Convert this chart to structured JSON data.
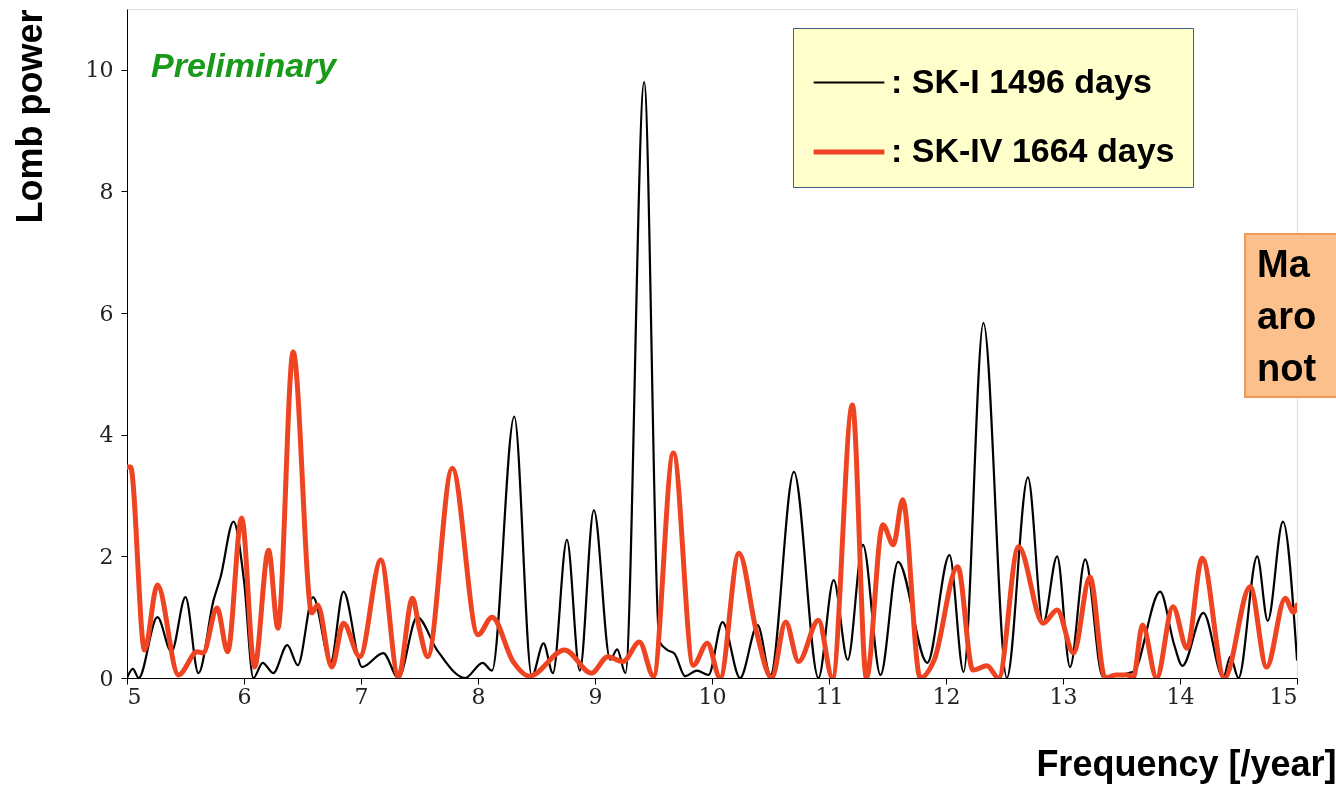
{
  "chart_data": {
    "type": "line",
    "xlabel": "Frequency [/year]",
    "ylabel": "Lomb power",
    "xlim": [
      5,
      15
    ],
    "xticks": [
      5,
      6,
      7,
      8,
      9,
      10,
      11,
      12,
      13,
      14,
      15
    ],
    "ylim": [
      0,
      11
    ],
    "yticks": [
      0,
      2,
      4,
      6,
      8,
      10
    ],
    "grid": false,
    "legend": "top right",
    "annotations": [
      "Preliminary",
      "Ma\naro\nnot"
    ],
    "series": [
      {
        "name": ": SK-I 1496 days",
        "color": "#000000",
        "x": [
          5.0,
          5.05,
          5.1,
          5.26,
          5.38,
          5.5,
          5.61,
          5.74,
          5.8,
          5.91,
          6.0,
          6.08,
          6.16,
          6.25,
          6.37,
          6.46,
          6.59,
          6.74,
          6.85,
          7.01,
          7.19,
          7.32,
          7.48,
          7.65,
          7.89,
          8.04,
          8.12,
          8.31,
          8.46,
          8.56,
          8.64,
          8.76,
          8.87,
          8.99,
          9.13,
          9.19,
          9.26,
          9.42,
          9.55,
          9.62,
          9.68,
          9.77,
          9.87,
          9.97,
          10.09,
          10.24,
          10.39,
          10.5,
          10.7,
          10.91,
          11.04,
          11.16,
          11.29,
          11.44,
          11.59,
          11.84,
          12.03,
          12.15,
          12.32,
          12.52,
          12.7,
          12.83,
          12.95,
          13.06,
          13.19,
          13.34,
          13.6,
          13.83,
          13.95,
          14.02,
          14.2,
          14.37,
          14.43,
          14.5,
          14.66,
          14.75,
          14.88,
          15.0
        ],
        "values": [
          0.0,
          0.15,
          0.0,
          1.0,
          0.43,
          1.33,
          0.08,
          1.28,
          1.66,
          2.57,
          1.6,
          0.0,
          0.25,
          0.08,
          0.54,
          0.21,
          1.33,
          0.25,
          1.42,
          0.18,
          0.41,
          0.0,
          1.0,
          0.46,
          0.0,
          0.25,
          0.12,
          4.3,
          0.03,
          0.57,
          0.08,
          2.27,
          0.12,
          2.76,
          0.3,
          0.47,
          0.08,
          9.8,
          0.6,
          0.46,
          0.4,
          0.03,
          0.12,
          0.05,
          0.92,
          0.0,
          0.87,
          0.05,
          3.39,
          0.0,
          1.61,
          0.3,
          2.19,
          0.05,
          1.91,
          0.25,
          2.02,
          0.1,
          5.84,
          0.0,
          3.3,
          0.9,
          2.0,
          0.18,
          1.95,
          0.02,
          0.1,
          1.42,
          0.55,
          0.2,
          1.07,
          0.0,
          0.35,
          0.0,
          2.0,
          0.94,
          2.57,
          0.3
        ]
      },
      {
        "name": ": SK-IV 1664 days",
        "color": "#ee4422",
        "x": [
          5.0,
          5.03,
          5.15,
          5.26,
          5.44,
          5.6,
          5.65,
          5.77,
          5.86,
          5.98,
          6.09,
          6.21,
          6.29,
          6.42,
          6.58,
          6.63,
          6.75,
          6.85,
          6.99,
          7.17,
          7.32,
          7.44,
          7.5,
          7.57,
          7.78,
          8.0,
          8.12,
          8.3,
          8.44,
          8.74,
          8.97,
          9.11,
          9.24,
          9.38,
          9.5,
          9.67,
          9.84,
          9.96,
          10.07,
          10.23,
          10.38,
          10.51,
          10.63,
          10.74,
          10.91,
          11.03,
          11.2,
          11.32,
          11.46,
          11.55,
          11.63,
          11.78,
          11.9,
          12.1,
          12.23,
          12.35,
          12.45,
          12.62,
          12.83,
          12.95,
          13.09,
          13.23,
          13.36,
          13.45,
          13.55,
          13.6,
          13.68,
          13.8,
          13.94,
          14.06,
          14.19,
          14.38,
          14.6,
          14.74,
          14.9,
          14.97,
          15.0
        ],
        "values": [
          3.47,
          3.47,
          0.46,
          1.53,
          0.05,
          0.43,
          0.41,
          1.15,
          0.43,
          2.63,
          0.18,
          2.1,
          0.82,
          5.36,
          1.07,
          1.2,
          0.18,
          0.9,
          0.35,
          1.94,
          0.02,
          1.31,
          0.8,
          0.35,
          3.45,
          0.71,
          1.0,
          0.27,
          0.03,
          0.46,
          0.08,
          0.35,
          0.27,
          0.59,
          0.03,
          3.7,
          0.21,
          0.57,
          0.0,
          2.05,
          0.76,
          0.0,
          0.92,
          0.27,
          0.95,
          0.0,
          4.49,
          0.0,
          2.52,
          2.19,
          2.93,
          0.0,
          0.3,
          1.83,
          0.13,
          0.2,
          0.0,
          2.16,
          0.9,
          1.12,
          0.41,
          1.66,
          0.0,
          0.05,
          0.05,
          0.0,
          0.87,
          0.0,
          1.17,
          0.49,
          1.97,
          0.0,
          1.5,
          0.18,
          1.31,
          1.08,
          1.2
        ]
      }
    ]
  }
}
